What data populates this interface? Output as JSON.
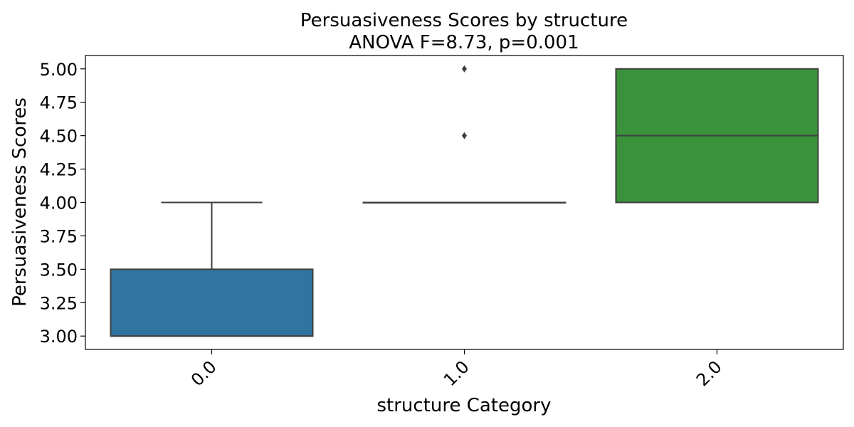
{
  "chart_data": {
    "type": "box",
    "title": "Persuasiveness Scores by structure",
    "subtitle": "ANOVA F=8.73, p=0.001",
    "xlabel": "structure Category",
    "ylabel": "Persuasiveness Scores",
    "ylim": [
      2.9,
      5.1
    ],
    "yticks": [
      "3.00",
      "3.25",
      "3.50",
      "3.75",
      "4.00",
      "4.25",
      "4.50",
      "4.75",
      "5.00"
    ],
    "grid": false,
    "categories": [
      "0.0",
      "1.0",
      "2.0"
    ],
    "boxes": [
      {
        "category": "0.0",
        "whislo": 3.0,
        "q1": 3.0,
        "median": 3.0,
        "q3": 3.5,
        "whishi": 4.0,
        "fliers": [],
        "color": "#3274a1"
      },
      {
        "category": "1.0",
        "whislo": 4.0,
        "q1": 4.0,
        "median": 4.0,
        "q3": 4.0,
        "whishi": 4.0,
        "fliers": [
          4.5,
          5.0
        ],
        "color": "#e1812c"
      },
      {
        "category": "2.0",
        "whislo": 4.0,
        "q1": 4.0,
        "median": 4.5,
        "q3": 5.0,
        "whishi": 5.0,
        "fliers": [],
        "color": "#3a923a"
      }
    ]
  }
}
